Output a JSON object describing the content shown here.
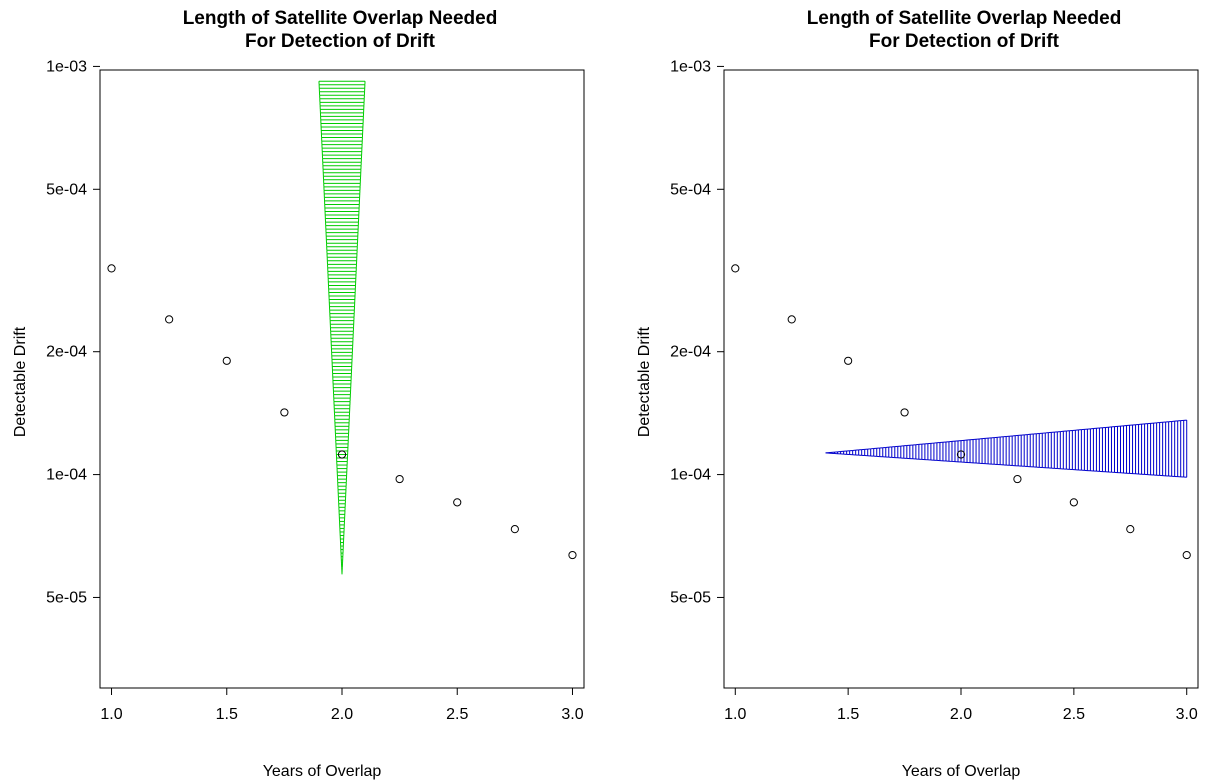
{
  "chart_data": [
    {
      "type": "scatter",
      "title": "Length of Satellite Overlap Needed\nFor Detection of Drift",
      "xlabel": "Years of Overlap",
      "ylabel": "Detectable Drift",
      "xlim": [
        0.95,
        3.05
      ],
      "ylim": [
        3e-05,
        0.00098
      ],
      "y_scale": "log",
      "x_ticks": [
        "1.0",
        "1.5",
        "2.0",
        "2.5",
        "3.0"
      ],
      "y_ticks": [
        "1e-03",
        "5e-04",
        "2e-04",
        "1e-04",
        "5e-05"
      ],
      "points": {
        "x": [
          1.0,
          1.25,
          1.5,
          1.75,
          2.0,
          2.25,
          2.5,
          2.75,
          3.0
        ],
        "y": [
          0.00032,
          0.00024,
          0.00019,
          0.000142,
          0.000112,
          9.75e-05,
          8.55e-05,
          7.35e-05,
          6.35e-05
        ]
      },
      "marker_color": "#000000",
      "overlay": {
        "shape": "vertical-wedge",
        "color": "#00cc00",
        "center_x": 2.0,
        "y_range": [
          5.7e-05,
          0.00092
        ],
        "half_width_range": [
          0.0,
          0.1
        ]
      }
    },
    {
      "type": "scatter",
      "title": "Length of Satellite Overlap Needed\nFor Detection of Drift",
      "xlabel": "Years of Overlap",
      "ylabel": "Detectable Drift",
      "xlim": [
        0.95,
        3.05
      ],
      "ylim": [
        3e-05,
        0.00098
      ],
      "y_scale": "log",
      "x_ticks": [
        "1.0",
        "1.5",
        "2.0",
        "2.5",
        "3.0"
      ],
      "y_ticks": [
        "1e-03",
        "5e-04",
        "2e-04",
        "1e-04",
        "5e-05"
      ],
      "points": {
        "x": [
          1.0,
          1.25,
          1.5,
          1.75,
          2.0,
          2.25,
          2.5,
          2.75,
          3.0
        ],
        "y": [
          0.00032,
          0.00024,
          0.00019,
          0.000142,
          0.000112,
          9.75e-05,
          8.55e-05,
          7.35e-05,
          6.35e-05
        ]
      },
      "marker_color": "#000000",
      "overlay": {
        "shape": "horizontal-wedge",
        "color": "#0000cc",
        "x_range": [
          1.4,
          3.0
        ],
        "center_y": 0.000113,
        "y_band_at_end": [
          9.85e-05,
          0.000136
        ]
      }
    }
  ]
}
